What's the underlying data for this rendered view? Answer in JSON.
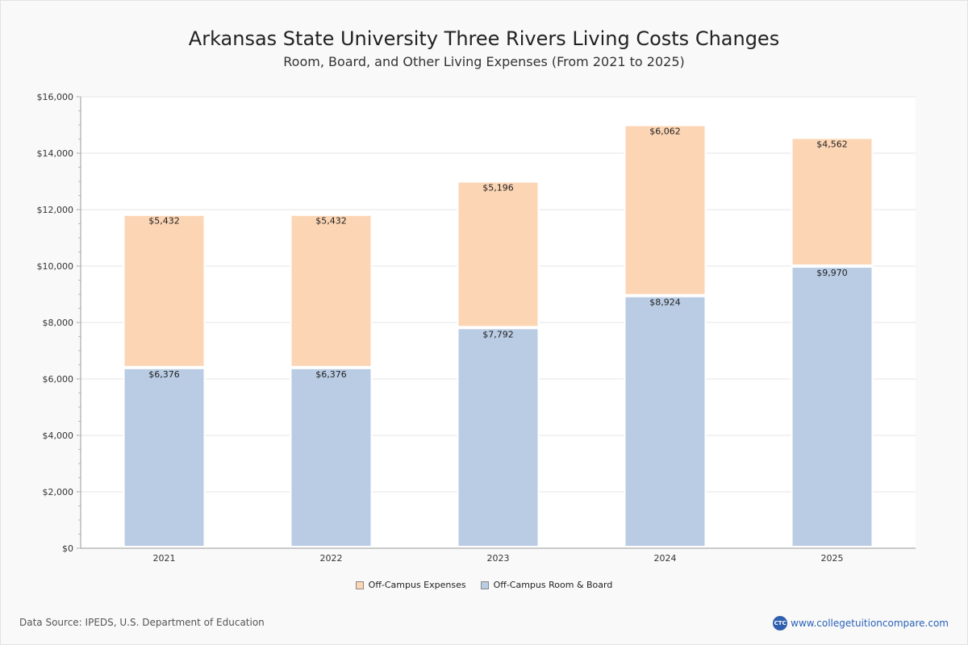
{
  "chart_data": {
    "type": "bar",
    "stacked": true,
    "title": "Arkansas State University Three Rivers Living Costs Changes",
    "subtitle": "Room, Board, and Other Living Expenses (From 2021 to 2025)",
    "categories": [
      "2021",
      "2022",
      "2023",
      "2024",
      "2025"
    ],
    "series": [
      {
        "name": "Off-Campus Room & Board",
        "color": "#b9cce4",
        "values": [
          6376,
          6376,
          7792,
          8924,
          9970
        ],
        "labels": [
          "$6,376",
          "$6,376",
          "$7,792",
          "$8,924",
          "$9,970"
        ]
      },
      {
        "name": "Off-Campus Expenses",
        "color": "#fcd5b4",
        "values": [
          5432,
          5432,
          5196,
          6062,
          4562
        ],
        "labels": [
          "$5,432",
          "$5,432",
          "$5,196",
          "$6,062",
          "$4,562"
        ]
      }
    ],
    "ylim": [
      0,
      16000
    ],
    "yticks": [
      0,
      2000,
      4000,
      6000,
      8000,
      10000,
      12000,
      14000,
      16000
    ],
    "ytick_labels": [
      "$0",
      "$2,000",
      "$4,000",
      "$6,000",
      "$8,000",
      "$10,000",
      "$12,000",
      "$14,000",
      "$16,000"
    ],
    "grid": true,
    "legend_position": "bottom-center"
  },
  "legend": {
    "item1_label": "Off-Campus Expenses",
    "item1_color": "#fcd5b4",
    "item2_label": "Off-Campus Room & Board",
    "item2_color": "#b9cce4"
  },
  "footer": {
    "source": "Data Source: IPEDS, U.S. Department of Education",
    "brand_logo_text": "CTC",
    "brand_url": "www.collegetuitioncompare.com"
  }
}
